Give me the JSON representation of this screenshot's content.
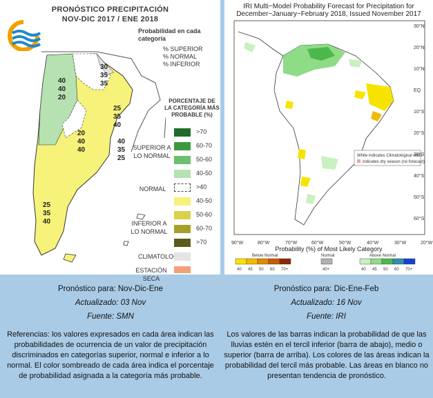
{
  "left": {
    "title_line1": "PRONÓSTICO PRECIPITACIÓN",
    "title_line2": "NOV-DIC 2017 / ENE 2018",
    "legend_title": "Probabilidad en cada categoría",
    "legend_rows": [
      "% SUPERIOR",
      "% NORMAL",
      "% INFERIOR"
    ],
    "pct_title": "PORCENTAJE DE LA CATEGORÍA MÁS PROBABLE (%)",
    "swatches": [
      {
        "label": ">70",
        "color": "#1f6b2a"
      },
      {
        "label": "60-70",
        "color": "#3c9a3e"
      },
      {
        "label": "50-60",
        "color": "#6cc06e"
      },
      {
        "label": "40-50",
        "color": "#b5e2b0"
      },
      {
        "label": ">40",
        "color": "#ffffff"
      },
      {
        "label": "40-50",
        "color": "#f6f27a"
      },
      {
        "label": "50-60",
        "color": "#d9d14a"
      },
      {
        "label": "60-70",
        "color": "#a5a02a"
      },
      {
        "label": ">70",
        "color": "#5a5a1e"
      }
    ],
    "cat_superior": "SUPERIOR A LO NORMAL",
    "cat_normal": "NORMAL",
    "cat_inferior": "INFERIOR A LO NORMAL",
    "climatologia": "CLIMATOLOGÍA",
    "estacion_seca": "ESTACIÓN SECA",
    "climatologia_color": "#e4e4e4",
    "estacion_seca_color": "#f2a07a",
    "map_numbers": [
      {
        "key": "a",
        "v": [
          "40",
          "40",
          "20"
        ]
      },
      {
        "key": "b",
        "v": [
          "30",
          "35",
          "35"
        ]
      },
      {
        "key": "c",
        "v": [
          "25",
          "35",
          "40"
        ]
      },
      {
        "key": "d",
        "v": [
          "20",
          "40",
          "40"
        ]
      },
      {
        "key": "e",
        "v": [
          "40",
          "35",
          "25"
        ]
      },
      {
        "key": "f",
        "v": [
          "25",
          "35",
          "40"
        ]
      }
    ],
    "caption_line1": "Pronóstico para: Nov-Dic-Ene",
    "caption_line2": "Actualizado: 03 Nov",
    "caption_line3": "Fuente: SMN",
    "ref_text": "Referencias: los valores expresados en cada área indican las probabilidades de ocurrencia de un valor de precipitación discriminados en categorías superior, normal e inferior a lo normal. El color sombreado de cada área indica el porcentaje de probabilidad asignada a la categoría más probable."
  },
  "right": {
    "title_line1": "IRI Multi−Model Probability Forecast for Precipitation for",
    "title_line2": "December−January−February 2018, Issued November 2017",
    "note1": "White indicates Climatological odds",
    "note2": "indicates dry season (no forecast)",
    "lon_ticks": [
      "90°W",
      "80°W",
      "70°W",
      "60°W",
      "50°W",
      "40°W",
      "30°W",
      "20°W"
    ],
    "lat_ticks": [
      "30°N",
      "20°N",
      "10°N",
      "EQ",
      "10°S",
      "20°S",
      "30°S",
      "40°S",
      "50°S",
      "60°S"
    ],
    "legend_title": "Probability (%) of Most Likely Category",
    "below_label": "Below Normal",
    "normal_label": "Normal",
    "above_label": "Above Normal",
    "below_ticks": [
      "40",
      "45",
      "50",
      "60",
      "70+"
    ],
    "normal_ticks": [
      "40+"
    ],
    "above_ticks": [
      "40",
      "45",
      "50",
      "60",
      "70+"
    ],
    "below_colors": [
      "#f7e300",
      "#f5b800",
      "#e08a00",
      "#c85a00",
      "#8a2a00"
    ],
    "normal_color": "#b0b0b0",
    "above_colors": [
      "#c8f0c0",
      "#8edc86",
      "#4cb84c",
      "#2f8fb0",
      "#1a3fd0"
    ],
    "caption_line1": "Pronóstico para: Dic-Ene-Feb",
    "caption_line2": "Actualizado: 16 Nov",
    "caption_line3": "Fuente: IRI",
    "ref_text": "Los valores de las barras indican la probabilidad de que las lluvias estén en el tercil inferior (barra de abajo), medio o superior (barra de arriba). Los colores de las áreas indican la probabilidad del tercil más probable. Las áreas en blanco no presentan tendencia de pronóstico."
  }
}
